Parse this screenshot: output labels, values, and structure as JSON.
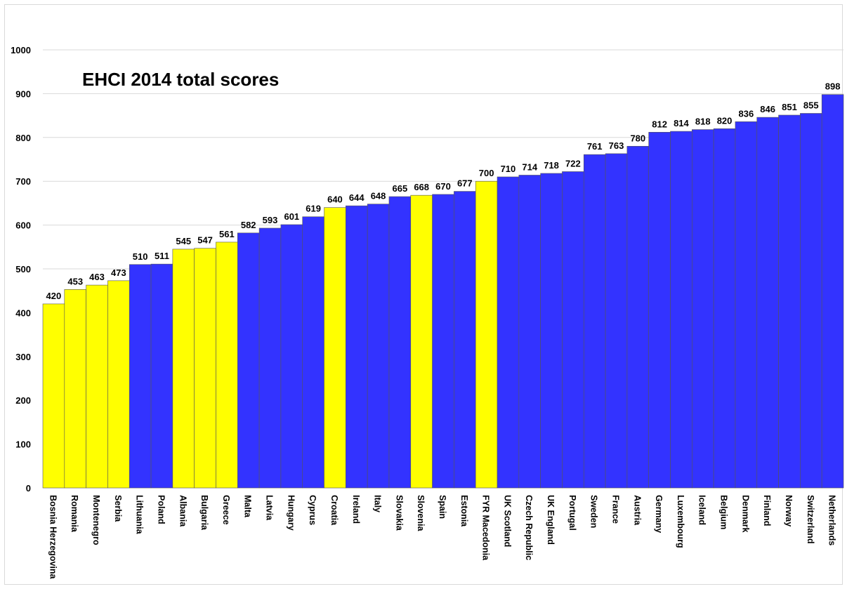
{
  "chart_data": {
    "type": "bar",
    "title": "EHCI 2014 total scores",
    "xlabel": "",
    "ylabel": "",
    "ylim": [
      0,
      1000
    ],
    "yticks": [
      0,
      100,
      200,
      300,
      400,
      500,
      600,
      700,
      800,
      900,
      1000
    ],
    "grid": true,
    "legend": "none",
    "data_labels": true,
    "colors": {
      "highlight": "#ffff00",
      "default": "#3333ff",
      "grid": "#d9d9d9",
      "bar_outline": "#555555"
    },
    "categories": [
      "Bosnia Herzegovina",
      "Romania",
      "Montenegro",
      "Serbia",
      "Lithuania",
      "Poland",
      "Albania",
      "Bulgaria",
      "Greece",
      "Malta",
      "Latvia",
      "Hungary",
      "Cyprus",
      "Croatia",
      "Ireland",
      "Italy",
      "Slovakia",
      "Slovenia",
      "Spain",
      "Estonia",
      "FYR Macedonia",
      "UK Scotland",
      "Czech Republic",
      "UK England",
      "Portugal",
      "Sweden",
      "France",
      "Austria",
      "Germany",
      "Luxembourg",
      "Iceland",
      "Belgium",
      "Denmark",
      "Finland",
      "Norway",
      "Switzerland",
      "Netherlands"
    ],
    "values": [
      420,
      453,
      463,
      473,
      510,
      511,
      545,
      547,
      561,
      582,
      593,
      601,
      619,
      640,
      644,
      648,
      665,
      668,
      670,
      677,
      700,
      710,
      714,
      718,
      722,
      761,
      763,
      780,
      812,
      814,
      818,
      820,
      836,
      846,
      851,
      855,
      898
    ],
    "bar_colors": [
      "#ffff00",
      "#ffff00",
      "#ffff00",
      "#ffff00",
      "#3333ff",
      "#3333ff",
      "#ffff00",
      "#ffff00",
      "#ffff00",
      "#3333ff",
      "#3333ff",
      "#3333ff",
      "#3333ff",
      "#ffff00",
      "#3333ff",
      "#3333ff",
      "#3333ff",
      "#ffff00",
      "#3333ff",
      "#3333ff",
      "#ffff00",
      "#3333ff",
      "#3333ff",
      "#3333ff",
      "#3333ff",
      "#3333ff",
      "#3333ff",
      "#3333ff",
      "#3333ff",
      "#3333ff",
      "#3333ff",
      "#3333ff",
      "#3333ff",
      "#3333ff",
      "#3333ff",
      "#3333ff",
      "#3333ff"
    ]
  }
}
